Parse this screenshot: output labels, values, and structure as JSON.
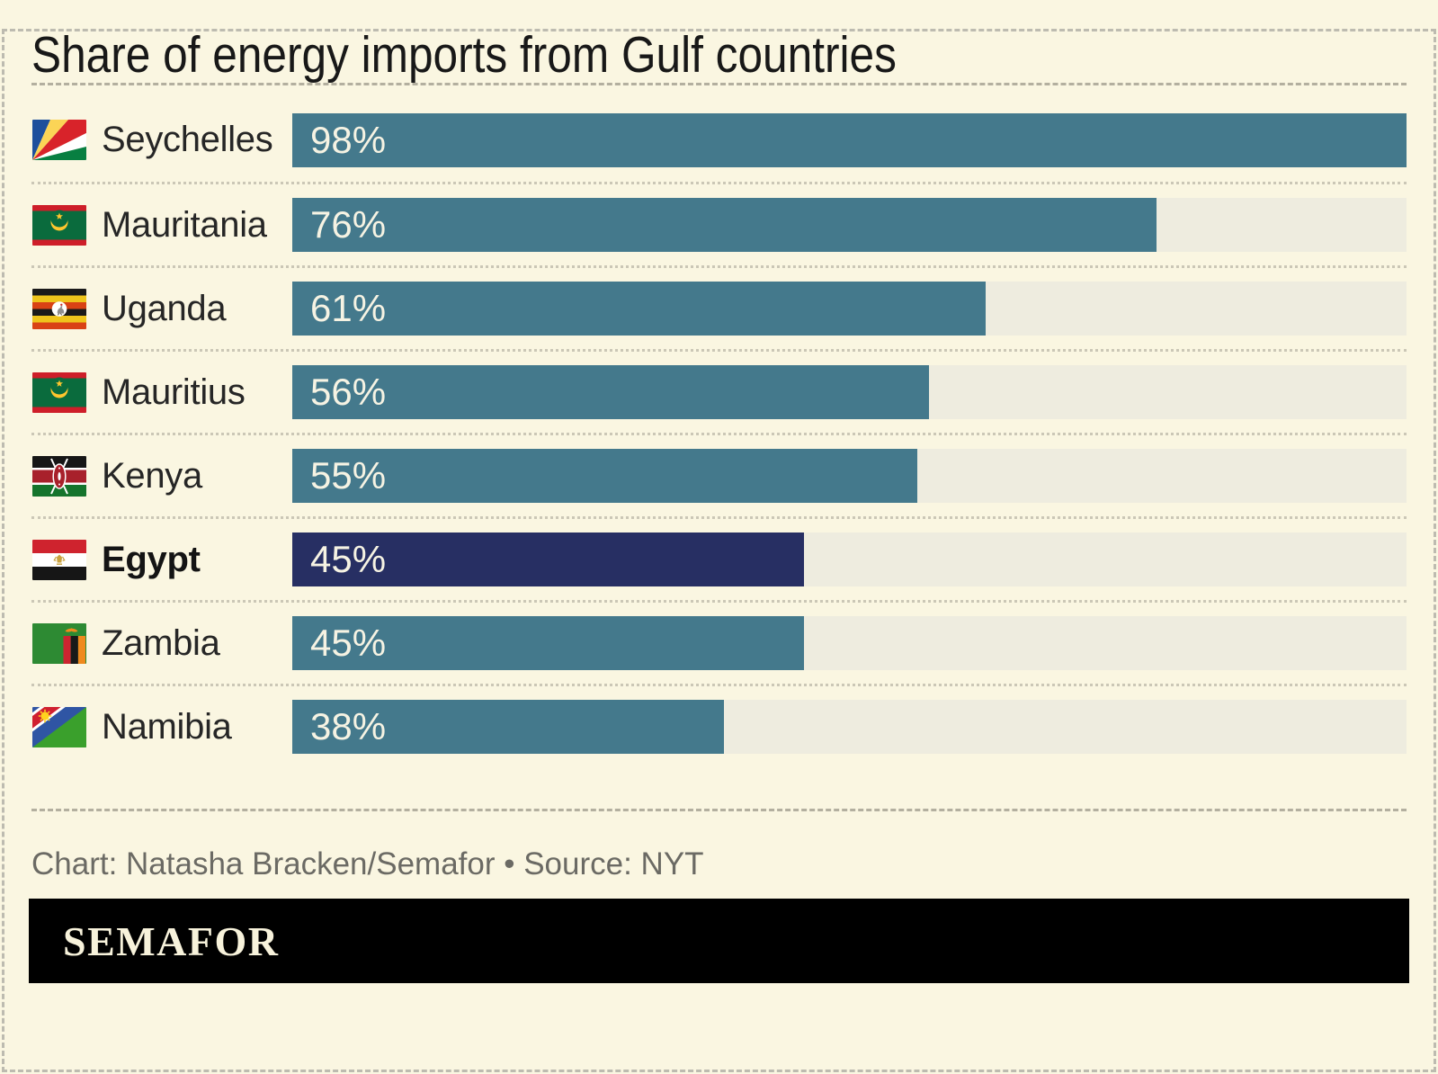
{
  "title": "Share of energy imports from Gulf countries",
  "chart_data": {
    "type": "bar",
    "orientation": "horizontal",
    "title": "Share of energy imports from Gulf countries",
    "unit": "%",
    "categories": [
      "Seychelles",
      "Mauritania",
      "Uganda",
      "Mauritius",
      "Kenya",
      "Egypt",
      "Zambia",
      "Namibia"
    ],
    "values": [
      98,
      76,
      61,
      56,
      55,
      45,
      45,
      38
    ],
    "value_labels": [
      "98%",
      "76%",
      "61%",
      "56%",
      "55%",
      "45%",
      "45%",
      "38%"
    ],
    "highlighted_category": "Egypt",
    "scale_max": 98,
    "bar_color": "#44798c",
    "highlight_color": "#272f63",
    "track_color": "#eeecdf",
    "legend": "none",
    "grid": "off"
  },
  "rows": [
    {
      "country": "Seychelles",
      "value": 98,
      "label": "98%",
      "flag_icon": "seychelles-flag-icon",
      "highlight": false
    },
    {
      "country": "Mauritania",
      "value": 76,
      "label": "76%",
      "flag_icon": "mauritania-flag-icon",
      "highlight": false
    },
    {
      "country": "Uganda",
      "value": 61,
      "label": "61%",
      "flag_icon": "uganda-flag-icon",
      "highlight": false
    },
    {
      "country": "Mauritius",
      "value": 56,
      "label": "56%",
      "flag_icon": "mauritania-flag-icon",
      "highlight": false
    },
    {
      "country": "Kenya",
      "value": 55,
      "label": "55%",
      "flag_icon": "kenya-flag-icon",
      "highlight": false
    },
    {
      "country": "Egypt",
      "value": 45,
      "label": "45%",
      "flag_icon": "egypt-flag-icon",
      "highlight": true
    },
    {
      "country": "Zambia",
      "value": 45,
      "label": "45%",
      "flag_icon": "zambia-flag-icon",
      "highlight": false
    },
    {
      "country": "Namibia",
      "value": 38,
      "label": "38%",
      "flag_icon": "namibia-flag-icon",
      "highlight": false
    }
  ],
  "footer": {
    "credit": "Chart: Natasha Bracken/Semafor • Source: NYT"
  },
  "logo": {
    "text": "SEMAFOR"
  },
  "colors": {
    "background": "#faf6e1",
    "bar": "#44798c",
    "highlight_bar": "#272f63",
    "bar_track": "#eeecdf",
    "title_text": "#181818",
    "label_text": "#262626",
    "value_text": "#f6f3e3",
    "credit_text": "#6b6a64",
    "dotted_separator": "#cbc7b6",
    "dashed_separator": "#b3af9f",
    "outer_border": "#bdbbb0",
    "logo_background": "#000000",
    "logo_text": "#f7f2db"
  }
}
